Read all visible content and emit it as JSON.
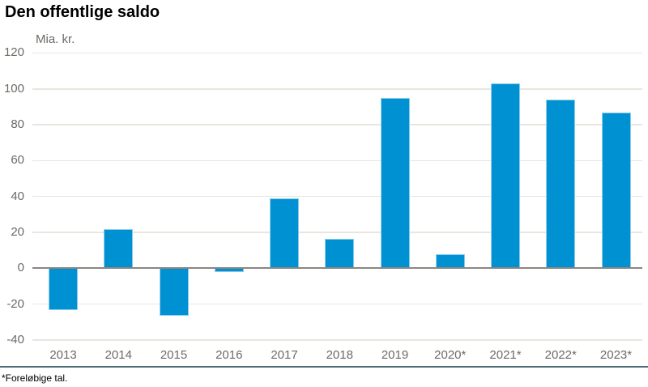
{
  "header": {
    "title": "Den offentlige saldo"
  },
  "chart": {
    "unit_label": "Mia. kr."
  },
  "footer": {
    "note": "*Foreløbige tal."
  },
  "colors": {
    "bar_fill": "#0091d3",
    "bar_border": "#8ecdec",
    "gridline": "#e9e6e0",
    "zero_line": "#8b8681",
    "axis_text": "#6b6a65",
    "separator_line": "#4d6a77",
    "title_text": "#000000"
  },
  "chart_data": {
    "type": "bar",
    "title": "Den offentlige saldo",
    "ylabel": "Mia. kr.",
    "xlabel": "",
    "categories": [
      "2013",
      "2014",
      "2015",
      "2016",
      "2017",
      "2018",
      "2019",
      "2020*",
      "2021*",
      "2022*",
      "2023*"
    ],
    "values": [
      -23.5,
      22,
      -26.5,
      -2,
      39,
      16.5,
      95,
      8,
      103,
      94,
      87
    ],
    "ylim": [
      -40,
      120
    ],
    "y_ticks": [
      120,
      100,
      80,
      60,
      40,
      20,
      0,
      -20,
      -40
    ],
    "grid": true,
    "legend": false,
    "bar_color": "#0091d3",
    "footnote": "*Foreløbige tal."
  }
}
